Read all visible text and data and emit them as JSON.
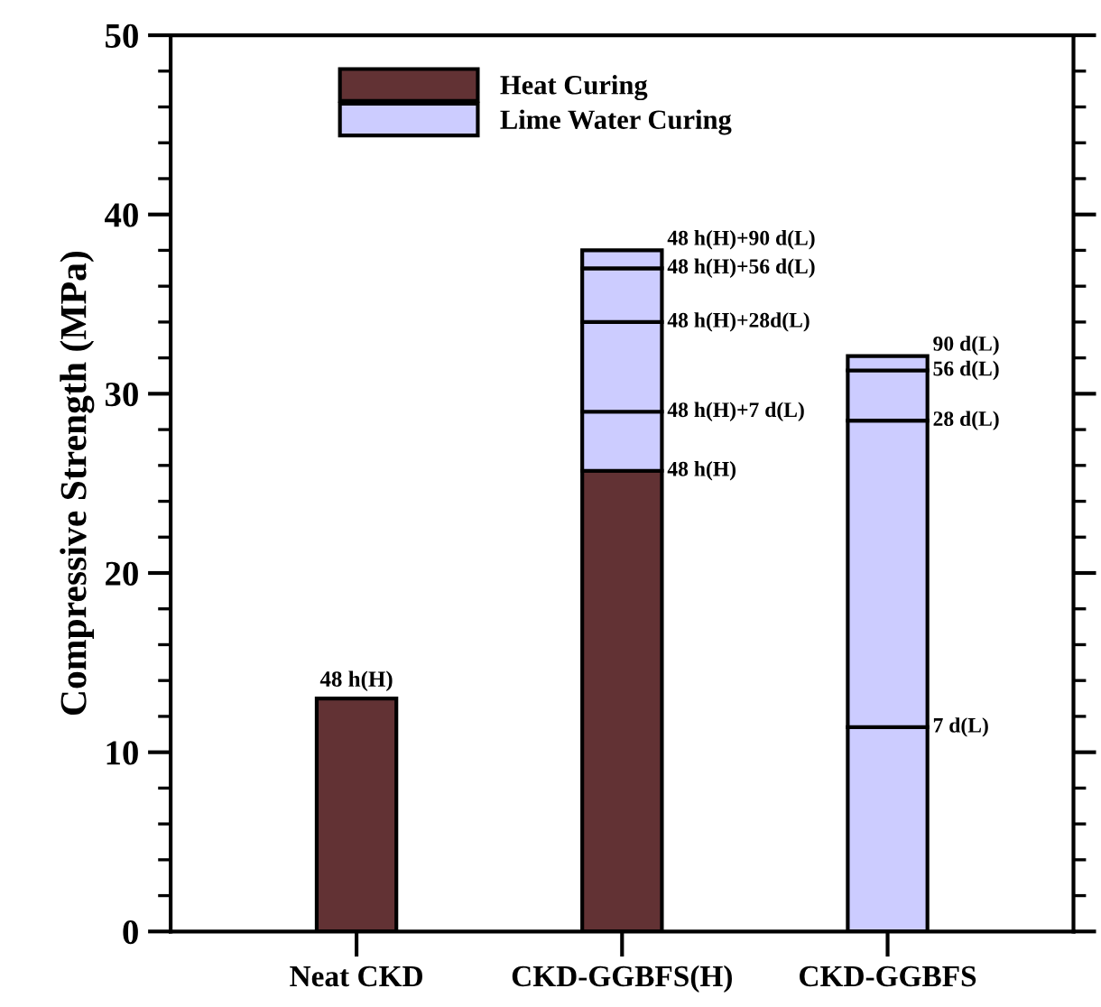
{
  "chart_data": {
    "type": "bar",
    "stacked": true,
    "ylabel": "Compressive Strength (MPa)",
    "categories": [
      "Neat CKD",
      "CKD-GGBFS(H)",
      "CKD-GGBFS"
    ],
    "series": [
      {
        "name": "Heat Curing",
        "color": "#623234",
        "values": [
          13.0,
          25.7,
          null
        ]
      },
      {
        "name": "Lime Water Curing",
        "color": "#ccccff",
        "values": [
          null,
          3.3,
          11.4
        ]
      },
      {
        "color": "#ccccff",
        "values": [
          null,
          5.0,
          17.1
        ]
      },
      {
        "color": "#ccccff",
        "values": [
          null,
          3.0,
          2.8
        ]
      },
      {
        "color": "#ccccff",
        "values": [
          null,
          1.0,
          0.8
        ]
      }
    ],
    "ylim": [
      0,
      50
    ],
    "yticks": [
      0,
      10,
      20,
      30,
      40,
      50
    ],
    "legend": "top left",
    "grid": false,
    "annotations": [
      {
        "text": "48 h(H)",
        "x": "Neat CKD",
        "y": 13.0
      },
      {
        "text": "48 h(H)",
        "x": "CKD-GGBFS(H)",
        "y": 25.7
      },
      {
        "text": "48 h(H)+7 d(L)",
        "x": "CKD-GGBFS(H)",
        "y": 29.0
      },
      {
        "text": "48 h(H)+28d(L)",
        "x": "CKD-GGBFS(H)",
        "y": 34.0
      },
      {
        "text": "48 h(H)+56 d(L)",
        "x": "CKD-GGBFS(H)",
        "y": 37.0
      },
      {
        "text": "48 h(H)+90 d(L)",
        "x": "CKD-GGBFS(H)",
        "y": 38.0
      },
      {
        "text": "7 d(L)",
        "x": "CKD-GGBFS",
        "y": 11.4
      },
      {
        "text": "28 d(L)",
        "x": "CKD-GGBFS",
        "y": 28.5
      },
      {
        "text": "56 d(L)",
        "x": "CKD-GGBFS",
        "y": 31.3
      },
      {
        "text": "90 d(L)",
        "x": "CKD-GGBFS",
        "y": 32.1
      }
    ]
  }
}
